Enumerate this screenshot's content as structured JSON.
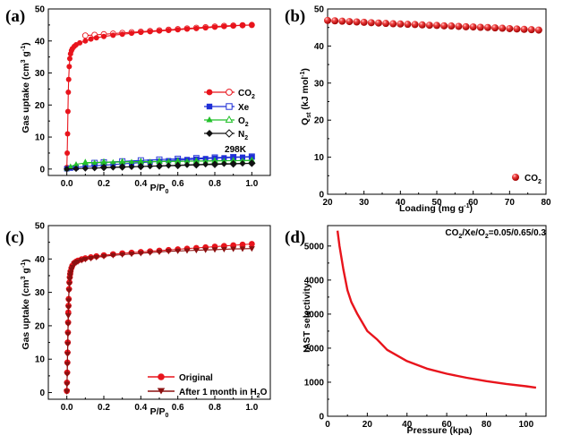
{
  "chart_data": [
    {
      "panel": "(a)",
      "type": "scatter",
      "xlabel": "P/P0",
      "ylabel": "Gas uptake (cm3 g-1)",
      "xlim": [
        -0.1,
        1.1
      ],
      "ylim": [
        -2,
        50
      ],
      "xticks": [
        "0.0",
        "0.2",
        "0.4",
        "0.6",
        "0.8",
        "1.0"
      ],
      "yticks": [
        "0",
        "10",
        "20",
        "30",
        "40",
        "50"
      ],
      "annotation": "298K",
      "legend_position": "center-right",
      "series": [
        {
          "name": "CO2",
          "color": "#e8141c",
          "marker": "circle",
          "adsorption": {
            "x": [
              0.0,
              0.002,
              0.004,
              0.006,
              0.008,
              0.01,
              0.013,
              0.016,
              0.02,
              0.025,
              0.03,
              0.04,
              0.05,
              0.07,
              0.1,
              0.13,
              0.16,
              0.2,
              0.25,
              0.3,
              0.35,
              0.4,
              0.45,
              0.5,
              0.55,
              0.6,
              0.65,
              0.7,
              0.75,
              0.8,
              0.85,
              0.9,
              0.95,
              1.0
            ],
            "y": [
              0.5,
              5,
              11,
              18,
              24,
              28,
              32,
              34.5,
              36,
              37,
              37.6,
              38.3,
              38.8,
              39.4,
              40.0,
              40.6,
              41.0,
              41.4,
              41.8,
              42.1,
              42.4,
              42.7,
              42.9,
              43.1,
              43.3,
              43.5,
              43.7,
              43.9,
              44.1,
              44.3,
              44.5,
              44.7,
              44.9,
              45.0
            ]
          },
          "desorption": {
            "x": [
              0.1,
              0.15,
              0.2,
              0.25,
              0.3,
              0.35,
              0.4,
              0.45,
              0.5,
              0.55,
              0.6,
              0.65,
              0.7,
              0.75,
              0.8,
              0.85,
              0.9,
              0.95,
              1.0
            ],
            "y": [
              41.7,
              41.9,
              42.1,
              42.3,
              42.5,
              42.7,
              42.9,
              43.1,
              43.3,
              43.5,
              43.7,
              43.9,
              44.1,
              44.3,
              44.5,
              44.7,
              44.8,
              44.9,
              45.0
            ]
          }
        },
        {
          "name": "Xe",
          "color": "#1f2fd6",
          "marker": "square",
          "adsorption": {
            "x": [
              0.0,
              0.02,
              0.05,
              0.1,
              0.15,
              0.2,
              0.25,
              0.3,
              0.35,
              0.4,
              0.45,
              0.5,
              0.55,
              0.6,
              0.65,
              0.7,
              0.75,
              0.8,
              0.85,
              0.9,
              0.95,
              1.0
            ],
            "y": [
              0.1,
              0.3,
              0.5,
              0.8,
              1.0,
              1.2,
              1.4,
              1.6,
              1.8,
              2.0,
              2.2,
              2.4,
              2.6,
              2.8,
              2.95,
              3.1,
              3.25,
              3.4,
              3.5,
              3.6,
              3.7,
              3.8
            ]
          },
          "desorption": {
            "x": [
              0.15,
              0.2,
              0.3,
              0.4,
              0.5,
              0.6,
              0.7,
              0.8,
              0.9,
              1.0
            ],
            "y": [
              1.9,
              2.1,
              2.4,
              2.7,
              2.95,
              3.2,
              3.4,
              3.6,
              3.75,
              3.9
            ]
          }
        },
        {
          "name": "O2",
          "color": "#22c02a",
          "marker": "triangle",
          "adsorption": {
            "x": [
              0.0,
              0.02,
              0.05,
              0.1,
              0.15,
              0.2,
              0.25,
              0.3,
              0.35,
              0.4,
              0.45,
              0.5,
              0.55,
              0.6,
              0.65,
              0.7,
              0.75,
              0.8,
              0.85,
              0.9,
              0.95,
              1.0
            ],
            "y": [
              0.1,
              0.8,
              1.5,
              1.9,
              2.0,
              2.1,
              2.15,
              2.2,
              2.25,
              2.3,
              2.3,
              2.35,
              2.4,
              2.4,
              2.45,
              2.5,
              2.5,
              2.55,
              2.6,
              2.6,
              2.65,
              2.7
            ]
          },
          "desorption": {
            "x": [
              0.1,
              0.2,
              0.3,
              0.4,
              0.5,
              0.6,
              0.7,
              0.8,
              0.9,
              1.0
            ],
            "y": [
              2.0,
              2.15,
              2.25,
              2.3,
              2.4,
              2.45,
              2.5,
              2.55,
              2.6,
              2.7
            ]
          }
        },
        {
          "name": "N2",
          "color": "#111111",
          "marker": "diamond",
          "adsorption": {
            "x": [
              0.0,
              0.05,
              0.1,
              0.15,
              0.2,
              0.25,
              0.3,
              0.35,
              0.4,
              0.45,
              0.5,
              0.55,
              0.6,
              0.65,
              0.7,
              0.75,
              0.8,
              0.85,
              0.9,
              0.95,
              1.0
            ],
            "y": [
              0.0,
              0.1,
              0.2,
              0.3,
              0.4,
              0.5,
              0.6,
              0.7,
              0.8,
              0.9,
              1.0,
              1.1,
              1.2,
              1.3,
              1.4,
              1.5,
              1.6,
              1.65,
              1.7,
              1.75,
              1.8
            ]
          },
          "desorption": {
            "x": [
              0.2,
              0.3,
              0.4,
              0.5,
              0.6,
              0.7,
              0.8,
              0.9,
              1.0
            ],
            "y": [
              0.5,
              0.65,
              0.8,
              0.95,
              1.1,
              1.3,
              1.45,
              1.6,
              1.8
            ]
          }
        }
      ]
    },
    {
      "panel": "(b)",
      "type": "scatter",
      "xlabel": "Loading (mg g-1)",
      "ylabel": "Qst (kJ mol-1)",
      "xlim": [
        20,
        80
      ],
      "ylim": [
        0,
        50
      ],
      "xticks": [
        "20",
        "30",
        "40",
        "50",
        "60",
        "70",
        "80"
      ],
      "yticks": [
        "0",
        "10",
        "20",
        "30",
        "40",
        "50"
      ],
      "legend_position": "bottom-right",
      "series": [
        {
          "name": "CO2",
          "color": "#e8141c",
          "marker": "sphere",
          "x": [
            20,
            22,
            24,
            26,
            28,
            30,
            32,
            34,
            36,
            38,
            40,
            42,
            44,
            46,
            48,
            50,
            52,
            54,
            56,
            58,
            60,
            62,
            64,
            66,
            68,
            70,
            72,
            74,
            76,
            78
          ],
          "y": [
            46.9,
            46.8,
            46.7,
            46.6,
            46.5,
            46.4,
            46.3,
            46.2,
            46.1,
            46.0,
            45.95,
            45.85,
            45.8,
            45.7,
            45.6,
            45.55,
            45.45,
            45.4,
            45.3,
            45.2,
            45.15,
            45.05,
            45.0,
            44.9,
            44.8,
            44.7,
            44.6,
            44.5,
            44.4,
            44.3
          ]
        }
      ]
    },
    {
      "panel": "(c)",
      "type": "scatter",
      "xlabel": "P/P0",
      "ylabel": "Gas uptake (cm3 g-1)",
      "xlim": [
        -0.1,
        1.1
      ],
      "ylim": [
        -2,
        50
      ],
      "xticks": [
        "0.0",
        "0.2",
        "0.4",
        "0.6",
        "0.8",
        "1.0"
      ],
      "yticks": [
        "0",
        "10",
        "20",
        "30",
        "40",
        "50"
      ],
      "legend_position": "bottom-right",
      "series": [
        {
          "name": "Original",
          "color": "#e8141c",
          "marker": "circle",
          "x": [
            0.0,
            0.001,
            0.002,
            0.003,
            0.004,
            0.005,
            0.006,
            0.007,
            0.008,
            0.009,
            0.01,
            0.012,
            0.014,
            0.016,
            0.018,
            0.02,
            0.025,
            0.03,
            0.04,
            0.05,
            0.06,
            0.08,
            0.1,
            0.13,
            0.16,
            0.2,
            0.25,
            0.3,
            0.35,
            0.4,
            0.45,
            0.5,
            0.55,
            0.6,
            0.65,
            0.7,
            0.75,
            0.8,
            0.85,
            0.9,
            0.95,
            1.0
          ],
          "y": [
            0.5,
            3,
            6,
            9,
            12,
            15,
            18,
            21,
            24,
            26,
            28,
            31,
            33,
            34.5,
            35.5,
            36.3,
            37.3,
            38.0,
            38.8,
            39.2,
            39.5,
            39.9,
            40.2,
            40.5,
            40.8,
            41.1,
            41.4,
            41.7,
            41.9,
            42.1,
            42.3,
            42.5,
            42.7,
            42.9,
            43.1,
            43.3,
            43.5,
            43.7,
            43.9,
            44.1,
            44.3,
            44.5
          ]
        },
        {
          "name": "After 1 month in H2O",
          "color": "#8b1010",
          "marker": "triangle-down",
          "x": [
            0.0,
            0.001,
            0.002,
            0.003,
            0.004,
            0.005,
            0.006,
            0.007,
            0.008,
            0.009,
            0.01,
            0.012,
            0.014,
            0.016,
            0.018,
            0.02,
            0.025,
            0.03,
            0.04,
            0.05,
            0.06,
            0.08,
            0.1,
            0.13,
            0.16,
            0.2,
            0.25,
            0.3,
            0.35,
            0.4,
            0.45,
            0.5,
            0.55,
            0.6,
            0.65,
            0.7,
            0.75,
            0.8,
            0.85,
            0.9,
            0.95,
            1.0
          ],
          "y": [
            0.3,
            2.5,
            5.5,
            8.5,
            11.5,
            14.5,
            17.5,
            20.5,
            23,
            25.5,
            27.5,
            30.5,
            32.5,
            34,
            35,
            35.8,
            36.8,
            37.6,
            38.5,
            38.9,
            39.2,
            39.6,
            39.9,
            40.2,
            40.5,
            40.8,
            41.1,
            41.3,
            41.5,
            41.7,
            41.9,
            42.1,
            42.3,
            42.4,
            42.5,
            42.6,
            42.7,
            42.8,
            42.9,
            43.0,
            43.05,
            43.1
          ]
        }
      ]
    },
    {
      "panel": "(d)",
      "type": "line",
      "xlabel": "Pressure (kpa)",
      "ylabel": "IAST selectivity",
      "annotation": "CO2/Xe/O2=0.05/0.65/0.3",
      "xlim": [
        0,
        110
      ],
      "ylim": [
        0,
        5600
      ],
      "xticks": [
        "0",
        "20",
        "40",
        "60",
        "80",
        "100"
      ],
      "yticks": [
        "0",
        "1000",
        "2000",
        "3000",
        "4000",
        "5000"
      ],
      "series": [
        {
          "name": "",
          "color": "#e8141c",
          "x": [
            5,
            6,
            8,
            10,
            12,
            15,
            20,
            25,
            30,
            40,
            50,
            60,
            70,
            80,
            90,
            100,
            105
          ],
          "y": [
            5450,
            5000,
            4300,
            3700,
            3350,
            3000,
            2500,
            2250,
            1950,
            1620,
            1400,
            1250,
            1130,
            1030,
            950,
            880,
            840
          ]
        }
      ]
    }
  ],
  "labels": {
    "a": {
      "tag": "(a)",
      "ylabel_pre": "Gas uptake (cm",
      "ylabel_sup": "3",
      "ylabel_mid": " g",
      "ylabel_sup2": "-1",
      "ylabel_post": ")",
      "xlabel_pre": "P/P",
      "xlabel_sub": "0",
      "note": "298K",
      "legend": [
        {
          "pre": "CO",
          "sub": "2"
        },
        {
          "pre": "Xe",
          "sub": ""
        },
        {
          "pre": "O",
          "sub": "2"
        },
        {
          "pre": "N",
          "sub": "2"
        }
      ]
    },
    "b": {
      "tag": "(b)",
      "ylabel_pre": "Q",
      "ylabel_sub": "st",
      "ylabel_mid": " (kJ mol",
      "ylabel_sup": "-1",
      "ylabel_post": ")",
      "xlabel_pre": "Loading (mg g",
      "xlabel_sup": "-1",
      "xlabel_post": ")",
      "legend": [
        {
          "pre": "CO",
          "sub": "2"
        }
      ]
    },
    "c": {
      "tag": "(c)",
      "ylabel_pre": "Gas uptake (cm",
      "ylabel_sup": "3",
      "ylabel_mid": " g",
      "ylabel_sup2": "-1",
      "ylabel_post": ")",
      "xlabel_pre": "P/P",
      "xlabel_sub": "0",
      "legend": [
        {
          "pre": "Original",
          "sub": ""
        },
        {
          "pre": "After 1 month in H",
          "sub": "2",
          "post": "O"
        }
      ]
    },
    "d": {
      "tag": "(d)",
      "ylabel": "IAST selectivity",
      "xlabel": "Pressure (kpa)",
      "note_parts": [
        {
          "t": "CO",
          "s": "2"
        },
        {
          "t": "/Xe/O",
          "s": "2"
        },
        {
          "t": "=0.05/0.65/0.3",
          "s": ""
        }
      ]
    }
  }
}
